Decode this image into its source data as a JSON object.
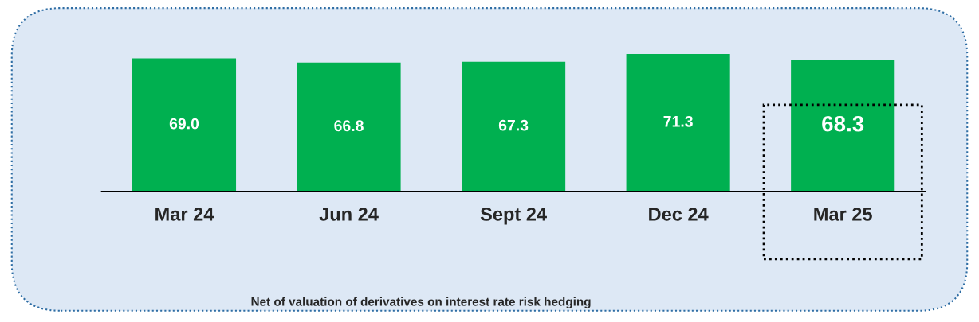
{
  "chart_data": {
    "type": "bar",
    "categories": [
      "Mar 24",
      "Jun 24",
      "Sept 24",
      "Dec 24",
      "Mar 25"
    ],
    "values": [
      69.0,
      66.8,
      67.3,
      71.3,
      68.3
    ],
    "color": "#00b050",
    "value_labels": [
      "69.0",
      "66.8",
      "67.3",
      "71.3",
      "68.3"
    ],
    "annotations": [
      "Net of valuation of derivatives on interest rate risk hedging"
    ]
  }
}
